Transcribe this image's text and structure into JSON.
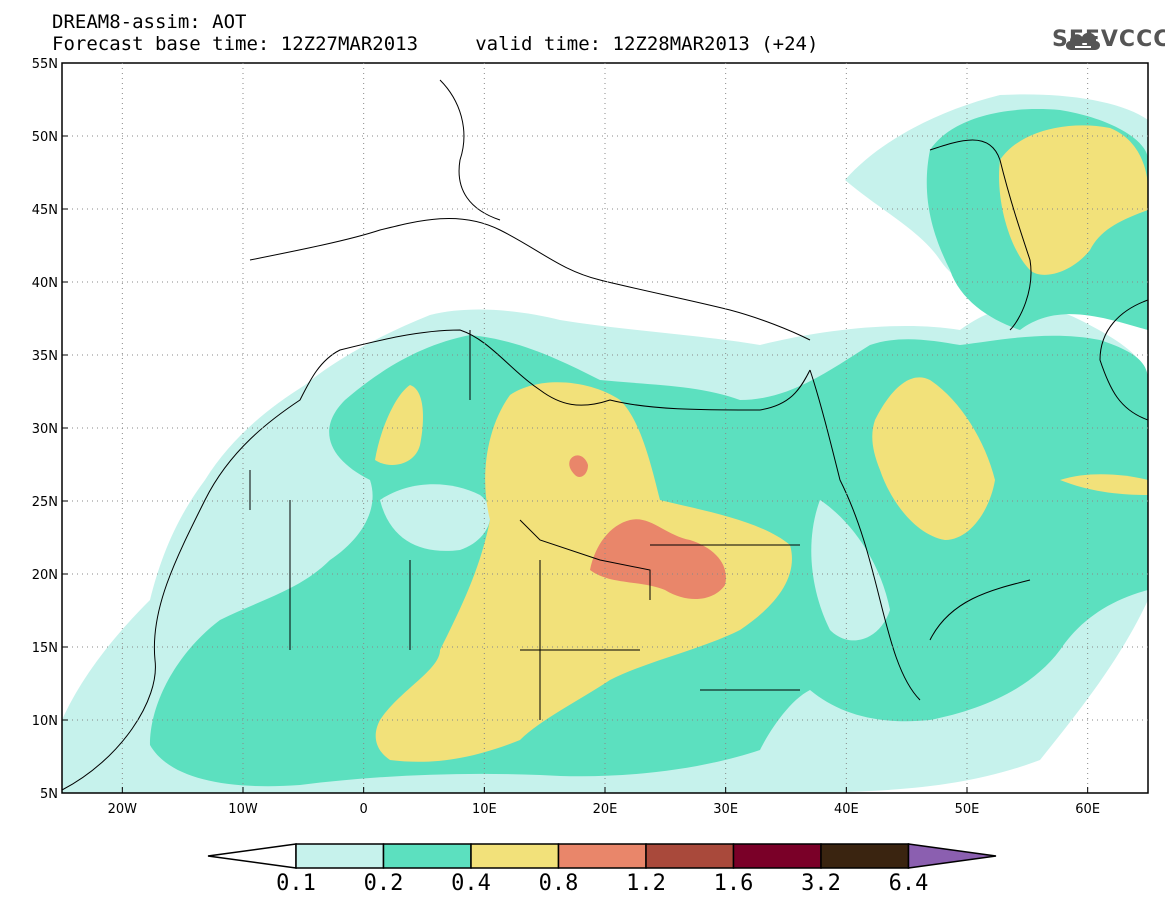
{
  "header": {
    "line1": "DREAM8-assim: AOT",
    "line2": "Forecast base time: 12Z27MAR2013     valid time: 12Z28MAR2013 (+24)"
  },
  "logo": {
    "text": "SEEVCCC",
    "icon": "cloud-icon"
  },
  "map": {
    "lon_range": [
      -25,
      65
    ],
    "lat_range": [
      5,
      55
    ],
    "lat_ticks": [
      "55N",
      "50N",
      "45N",
      "40N",
      "35N",
      "30N",
      "25N",
      "20N",
      "15N",
      "10N",
      "5N"
    ],
    "lon_ticks": [
      "20W",
      "10W",
      "0",
      "10E",
      "20E",
      "30E",
      "40E",
      "50E",
      "60E"
    ],
    "colors": {
      "c01": "#c6f2ec",
      "c02": "#5ce0bf",
      "c04": "#f2e17a",
      "c08": "#e9866a"
    }
  },
  "colorbar": {
    "labels": [
      "0.1",
      "0.2",
      "0.4",
      "0.8",
      "1.2",
      "1.6",
      "3.2",
      "6.4"
    ],
    "colors": [
      "#c6f2ec",
      "#5ce0bf",
      "#f2e17a",
      "#e9866a",
      "#a9493b",
      "#7a0028",
      "#3a2410",
      "#8b5fb0"
    ]
  }
}
